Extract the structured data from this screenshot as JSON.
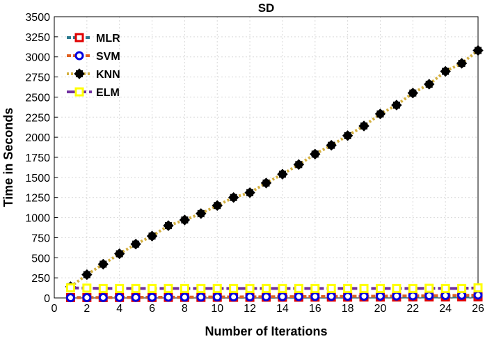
{
  "chart_data": {
    "type": "line",
    "title": "SD",
    "xlabel": "Number of Iterations",
    "ylabel": "Time in Seconds",
    "xlim": [
      0,
      26
    ],
    "ylim": [
      0,
      3500
    ],
    "xticks": [
      0,
      2,
      4,
      6,
      8,
      10,
      12,
      14,
      16,
      18,
      20,
      22,
      24,
      26
    ],
    "yticks": [
      0,
      250,
      500,
      750,
      1000,
      1250,
      1500,
      1750,
      2000,
      2250,
      2500,
      2750,
      3000,
      3250,
      3500
    ],
    "grid": true,
    "legend_position": "top-left",
    "x": [
      1,
      2,
      3,
      4,
      5,
      6,
      7,
      8,
      9,
      10,
      11,
      12,
      13,
      14,
      15,
      16,
      17,
      18,
      19,
      20,
      21,
      22,
      23,
      24,
      25,
      26
    ],
    "series": [
      {
        "name": "MLR",
        "line_color": "#2b7a8f",
        "marker_color": "#e00000",
        "marker": "square",
        "dash": "6 3",
        "values": [
          5,
          5,
          5,
          6,
          6,
          6,
          7,
          7,
          7,
          8,
          8,
          8,
          9,
          9,
          9,
          10,
          10,
          10,
          11,
          11,
          11,
          12,
          12,
          12,
          13,
          13
        ]
      },
      {
        "name": "SVM",
        "line_color": "#e06020",
        "marker_color": "#0000e0",
        "marker": "circle",
        "dash": "6 3",
        "values": [
          3,
          4,
          5,
          6,
          7,
          8,
          9,
          10,
          11,
          12,
          13,
          14,
          15,
          16,
          17,
          18,
          19,
          20,
          21,
          22,
          24,
          26,
          28,
          30,
          32,
          35
        ]
      },
      {
        "name": "KNN",
        "line_color": "#d4b040",
        "marker_color": "#000000",
        "marker": "diamond",
        "dash": "3 3",
        "values": [
          140,
          290,
          420,
          550,
          670,
          770,
          900,
          970,
          1050,
          1150,
          1250,
          1310,
          1430,
          1540,
          1660,
          1790,
          1900,
          2020,
          2140,
          2290,
          2400,
          2550,
          2660,
          2820,
          2920,
          3080
        ]
      },
      {
        "name": "ELM",
        "line_color": "#7030a0",
        "marker_color": "#ffff00",
        "marker": "square",
        "dash": "12 4",
        "values": [
          125,
          122,
          118,
          118,
          118,
          118,
          118,
          118,
          118,
          118,
          118,
          118,
          118,
          118,
          118,
          118,
          118,
          118,
          118,
          118,
          118,
          118,
          120,
          118,
          118,
          125
        ]
      }
    ]
  }
}
